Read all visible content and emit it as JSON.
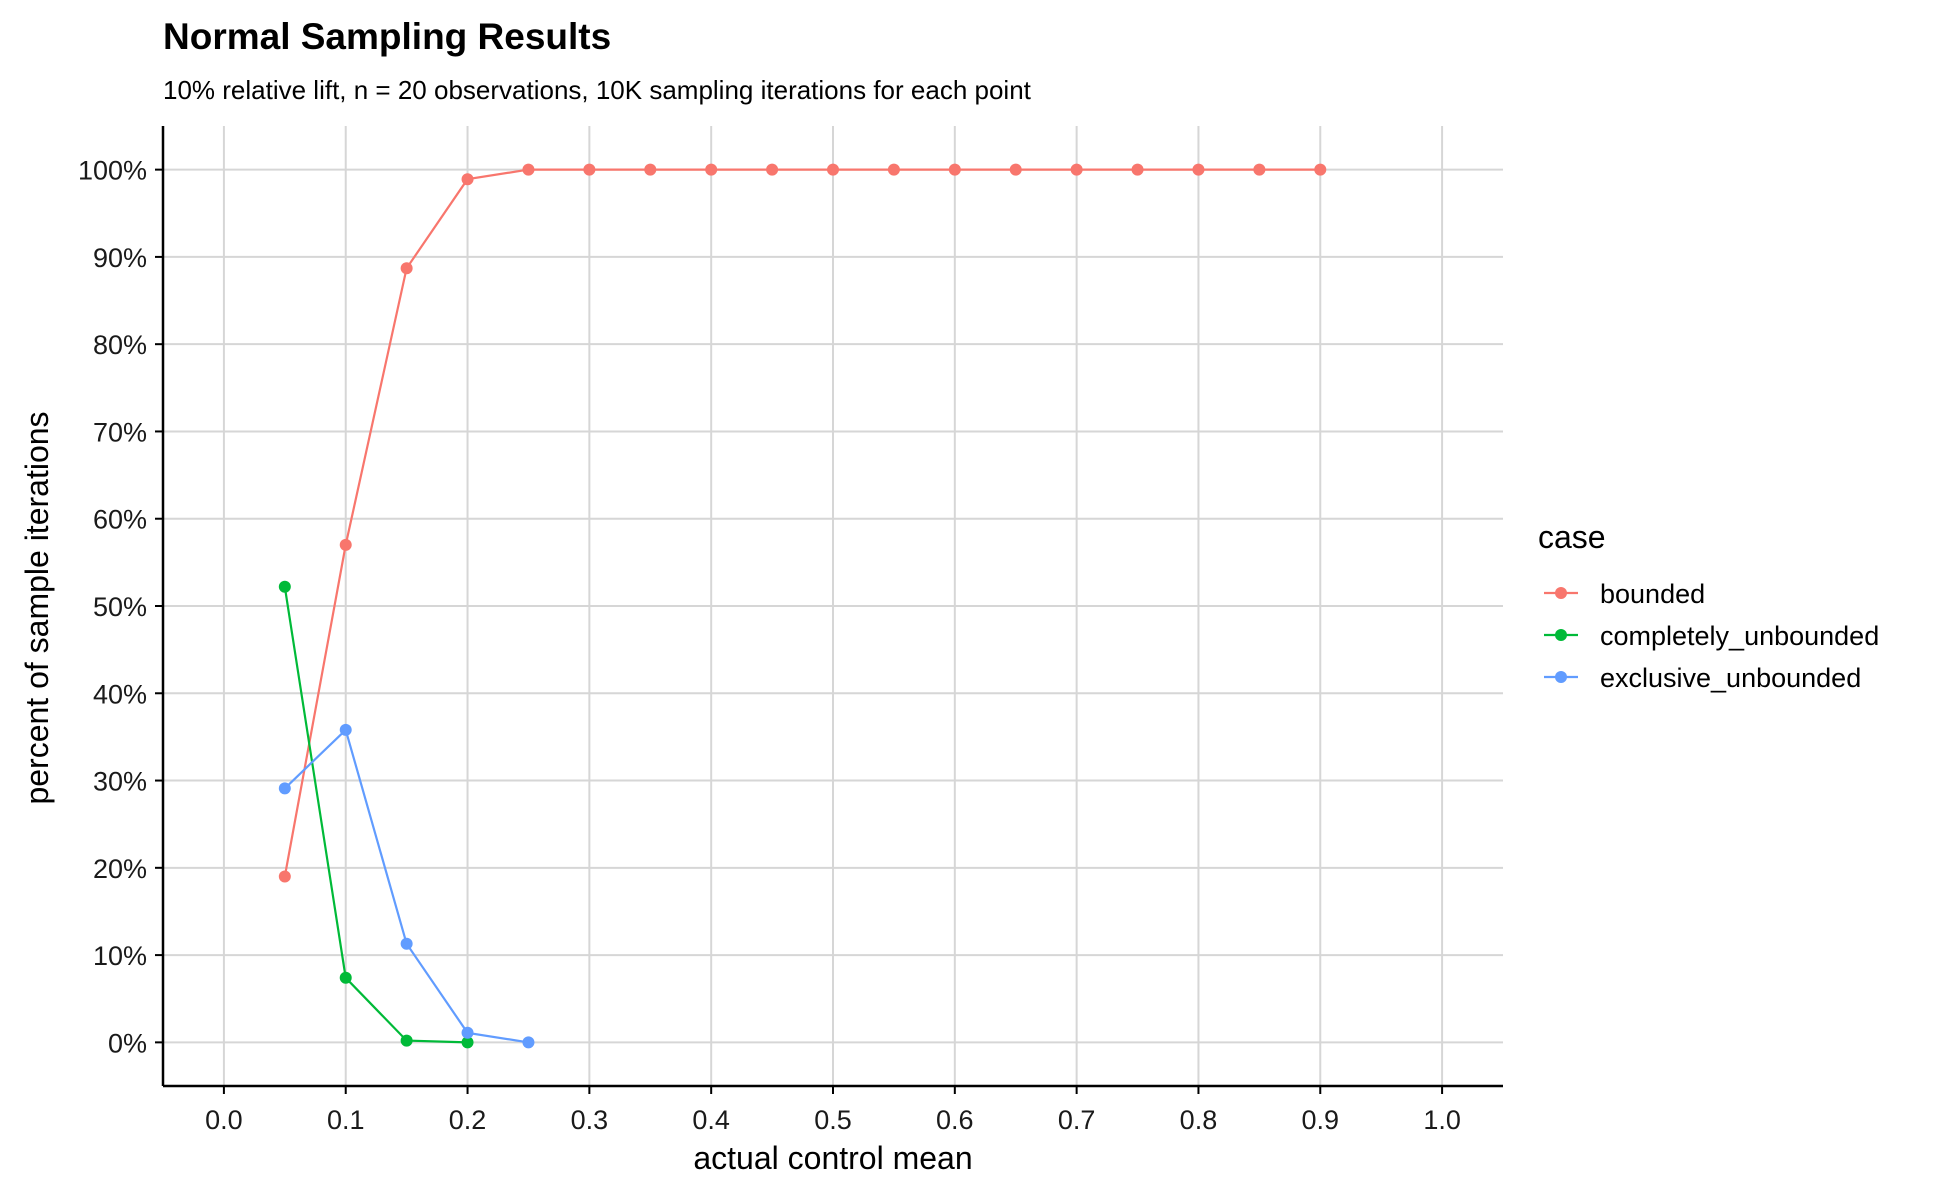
{
  "chart_data": {
    "type": "line",
    "title": "Normal Sampling Results",
    "subtitle": "10% relative lift, n = 20 observations, 10K sampling iterations for each point",
    "xlabel": "actual control mean",
    "ylabel": "percent of sample iterations",
    "xlim": [
      -0.05,
      1.05
    ],
    "ylim": [
      -0.05,
      1.05
    ],
    "x_ticks": [
      0.0,
      0.1,
      0.2,
      0.3,
      0.4,
      0.5,
      0.6,
      0.7,
      0.8,
      0.9,
      1.0
    ],
    "x_tick_labels": [
      "0.0",
      "0.1",
      "0.2",
      "0.3",
      "0.4",
      "0.5",
      "0.6",
      "0.7",
      "0.8",
      "0.9",
      "1.0"
    ],
    "y_ticks": [
      0,
      0.1,
      0.2,
      0.3,
      0.4,
      0.5,
      0.6,
      0.7,
      0.8,
      0.9,
      1.0
    ],
    "y_tick_labels": [
      "0%",
      "10%",
      "20%",
      "30%",
      "40%",
      "50%",
      "60%",
      "70%",
      "80%",
      "90%",
      "100%"
    ],
    "grid": true,
    "legend": {
      "title": "case",
      "position": "right"
    },
    "series": [
      {
        "name": "bounded",
        "color": "#F8766D",
        "x": [
          0.05,
          0.1,
          0.15,
          0.2,
          0.25,
          0.3,
          0.35,
          0.4,
          0.45,
          0.5,
          0.55,
          0.6,
          0.65,
          0.7,
          0.75,
          0.8,
          0.85,
          0.9
        ],
        "y": [
          0.19,
          0.57,
          0.887,
          0.989,
          1.0,
          1.0,
          1.0,
          1.0,
          1.0,
          1.0,
          1.0,
          1.0,
          1.0,
          1.0,
          1.0,
          1.0,
          1.0,
          1.0
        ]
      },
      {
        "name": "completely_unbounded",
        "color": "#00BA38",
        "x": [
          0.05,
          0.1,
          0.15,
          0.2
        ],
        "y": [
          0.522,
          0.074,
          0.002,
          0.0
        ]
      },
      {
        "name": "exclusive_unbounded",
        "color": "#619CFF",
        "x": [
          0.05,
          0.1,
          0.15,
          0.2,
          0.25
        ],
        "y": [
          0.291,
          0.358,
          0.113,
          0.011,
          0.0
        ]
      }
    ]
  }
}
